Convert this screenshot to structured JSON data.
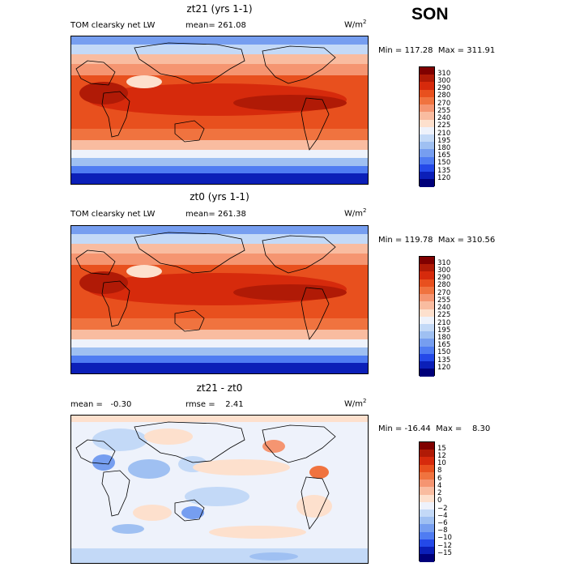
{
  "season": "SON",
  "panels": [
    {
      "title": "zt21 (yrs 1-1)",
      "variable": "TOM clearsky net LW",
      "stat1": "mean= 261.08",
      "stat2": "",
      "units": "W/m",
      "units_sup": "2",
      "minmax": "Min = 117.28  Max = 311.91",
      "levels": [
        "310",
        "300",
        "290",
        "280",
        "270",
        "255",
        "240",
        "225",
        "210",
        "195",
        "180",
        "165",
        "150",
        "135",
        "120"
      ],
      "colors": [
        "#800000",
        "#b01a06",
        "#d62a0c",
        "#e8501e",
        "#f0733f",
        "#f59571",
        "#f9bca0",
        "#fde0cd",
        "#eef2fb",
        "#c3d9f7",
        "#9fc0f2",
        "#769ef0",
        "#4f7cf2",
        "#2449e8",
        "#0b1fb8",
        "#00007a"
      ]
    },
    {
      "title": "zt0 (yrs 1-1)",
      "variable": "TOM clearsky net LW",
      "stat1": "mean= 261.38",
      "stat2": "",
      "units": "W/m",
      "units_sup": "2",
      "minmax": "Min = 119.78  Max = 310.56",
      "levels": [
        "310",
        "300",
        "290",
        "280",
        "270",
        "255",
        "240",
        "225",
        "210",
        "195",
        "180",
        "165",
        "150",
        "135",
        "120"
      ],
      "colors": [
        "#800000",
        "#b01a06",
        "#d62a0c",
        "#e8501e",
        "#f0733f",
        "#f59571",
        "#f9bca0",
        "#fde0cd",
        "#eef2fb",
        "#c3d9f7",
        "#9fc0f2",
        "#769ef0",
        "#4f7cf2",
        "#2449e8",
        "#0b1fb8",
        "#00007a"
      ]
    },
    {
      "title": "zt21 - zt0",
      "variable": "",
      "stat1": "mean =   -0.30",
      "stat2": "rmse =    2.41",
      "units": "W/m",
      "units_sup": "2",
      "minmax": "Min = -16.44  Max =    8.30",
      "levels": [
        "15",
        "12",
        "10",
        "8",
        "6",
        "4",
        "2",
        "0",
        "−2",
        "−4",
        "−6",
        "−8",
        "−10",
        "−12",
        "−15"
      ],
      "colors": [
        "#800000",
        "#b01a06",
        "#d62a0c",
        "#e8501e",
        "#f0733f",
        "#f59571",
        "#f9bca0",
        "#fde0cd",
        "#eef2fb",
        "#c3d9f7",
        "#9fc0f2",
        "#769ef0",
        "#4f7cf2",
        "#2449e8",
        "#0b1fb8",
        "#00007a"
      ]
    }
  ]
}
